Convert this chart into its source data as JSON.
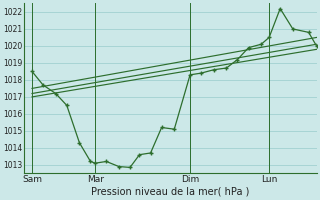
{
  "xlabel": "Pression niveau de la mer( hPa )",
  "bg_color": "#cce8e8",
  "grid_color": "#99cccc",
  "line_color": "#2d6e2d",
  "ylim": [
    1012.5,
    1022.5
  ],
  "yticks": [
    1013,
    1014,
    1015,
    1016,
    1017,
    1018,
    1019,
    1020,
    1021,
    1022
  ],
  "xtick_labels": [
    "Sam",
    "Mar",
    "Dim",
    "Lun"
  ],
  "xtick_positions": [
    0,
    4,
    10,
    15
  ],
  "vline_positions": [
    0,
    4,
    10,
    15
  ],
  "xlim": [
    -0.5,
    18
  ],
  "series1_x": [
    0,
    0.7,
    1.5,
    2.2,
    3.0,
    3.7,
    4.0,
    4.7,
    5.5,
    6.2,
    6.8,
    7.5,
    8.2,
    9.0,
    10.0,
    10.7,
    11.5,
    12.3,
    13.0,
    13.7,
    14.5,
    15.0,
    15.7,
    16.5,
    17.5,
    18.0
  ],
  "series1_y": [
    1018.5,
    1017.7,
    1017.2,
    1016.5,
    1014.3,
    1013.2,
    1013.1,
    1013.2,
    1012.9,
    1012.85,
    1013.6,
    1013.7,
    1015.2,
    1015.1,
    1018.3,
    1018.4,
    1018.6,
    1018.7,
    1019.2,
    1019.9,
    1020.1,
    1020.5,
    1022.2,
    1021.0,
    1020.8,
    1020.0
  ],
  "series2_x": [
    0,
    18
  ],
  "series2_y": [
    1017.5,
    1020.5
  ],
  "series3_x": [
    0,
    18
  ],
  "series3_y": [
    1017.0,
    1019.8
  ],
  "series4_x": [
    0,
    18
  ],
  "series4_y": [
    1017.2,
    1020.1
  ]
}
